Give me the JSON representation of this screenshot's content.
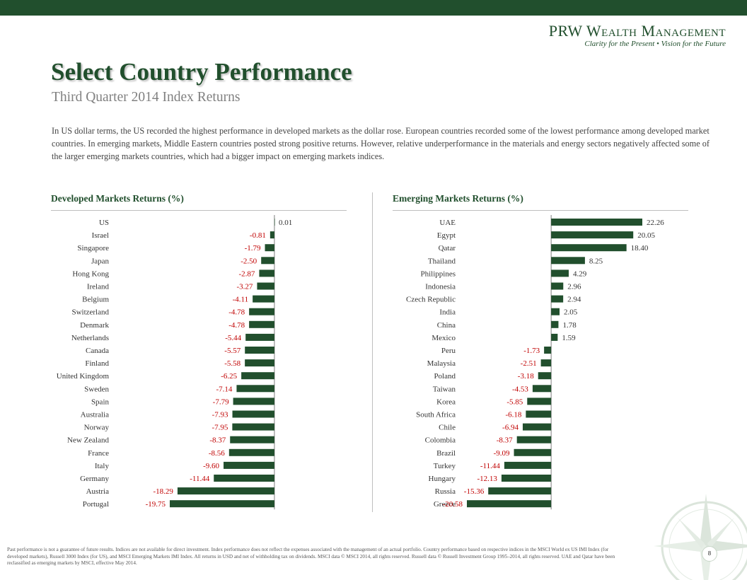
{
  "header": {
    "brand_name": "PRW Wealth Management",
    "tagline": "Clarity for the Present  •  Vision for the Future"
  },
  "title": "Select Country Performance",
  "subtitle": "Third Quarter 2014 Index Returns",
  "intro": "In US dollar terms, the US recorded the highest performance in developed markets as the dollar rose. European countries recorded some of the lowest performance among developed market countries. In emerging markets, Middle Eastern countries posted strong positive returns. However, relative underperformance in the materials and energy sectors negatively affected some of the larger emerging markets countries, which had a bigger impact on emerging markets indices.",
  "footnote": "Past performance is not a guarantee of future results. Indices are not available for direct investment. Index performance does not reflect the expenses associated with the management of an actual portfolio. Country performance based on respective indices in the MSCI World ex US IMI Index (for developed markets), Russell 3000 Index (for US), and MSCI Emerging Markets IMI Index. All returns in USD and net of withholding tax on dividends. MSCI data © MSCI 2014, all rights reserved. Russell data © Russell Investment Group 1995–2014, all rights reserved. UAE and Qatar have been reclassified as emerging markets by MSCI, effective May 2014.",
  "page_number": "8",
  "colors": {
    "brand_green": "#214f2d",
    "bar": "#214f2d",
    "positive_label": "#333333",
    "negative_label": "#c00000"
  },
  "chart_data": [
    {
      "type": "bar",
      "orientation": "horizontal",
      "title": "Developed Markets Returns (%)",
      "categories": [
        "US",
        "Israel",
        "Singapore",
        "Japan",
        "Hong Kong",
        "Ireland",
        "Belgium",
        "Switzerland",
        "Denmark",
        "Netherlands",
        "Canada",
        "Finland",
        "United Kingdom",
        "Sweden",
        "Spain",
        "Australia",
        "Norway",
        "New Zealand",
        "France",
        "Italy",
        "Germany",
        "Austria",
        "Portugal"
      ],
      "values": [
        0.01,
        -0.81,
        -1.79,
        -2.5,
        -2.87,
        -3.27,
        -4.11,
        -4.78,
        -4.78,
        -5.44,
        -5.57,
        -5.58,
        -6.25,
        -7.14,
        -7.79,
        -7.93,
        -7.95,
        -8.37,
        -8.56,
        -9.6,
        -11.44,
        -18.29,
        -19.75
      ],
      "labels": [
        "0.01",
        "-0.81",
        "-1.79",
        "-2.50",
        "-2.87",
        "-3.27",
        "-4.11",
        "-4.78",
        "-4.78",
        "-5.44",
        "-5.57",
        "-5.58",
        "-6.25",
        "-7.14",
        "-7.79",
        "-7.93",
        "-7.95",
        "-8.37",
        "-8.56",
        "-9.60",
        "-11.44",
        "-18.29",
        "-19.75"
      ],
      "xlim": [
        -19.75,
        0.01
      ]
    },
    {
      "type": "bar",
      "orientation": "horizontal",
      "title": "Emerging Markets Returns (%)",
      "categories": [
        "UAE",
        "Egypt",
        "Qatar",
        "Thailand",
        "Philippines",
        "Indonesia",
        "Czech Republic",
        "India",
        "China",
        "Mexico",
        "Peru",
        "Malaysia",
        "Poland",
        "Taiwan",
        "Korea",
        "South Africa",
        "Chile",
        "Colombia",
        "Brazil",
        "Turkey",
        "Hungary",
        "Russia",
        "Greece"
      ],
      "values": [
        22.26,
        20.05,
        18.4,
        8.25,
        4.29,
        2.96,
        2.94,
        2.05,
        1.78,
        1.59,
        -1.73,
        -2.51,
        -3.18,
        -4.53,
        -5.85,
        -6.18,
        -6.94,
        -8.37,
        -9.09,
        -11.44,
        -12.13,
        -15.36,
        -20.58
      ],
      "labels": [
        "22.26",
        "20.05",
        "18.40",
        "8.25",
        "4.29",
        "2.96",
        "2.94",
        "2.05",
        "1.78",
        "1.59",
        "-1.73",
        "-2.51",
        "-3.18",
        "-4.53",
        "-5.85",
        "-6.18",
        "-6.94",
        "-8.37",
        "-9.09",
        "-11.44",
        "-12.13",
        "-15.36",
        "-20.58"
      ],
      "xlim": [
        -20.58,
        22.26
      ]
    }
  ]
}
